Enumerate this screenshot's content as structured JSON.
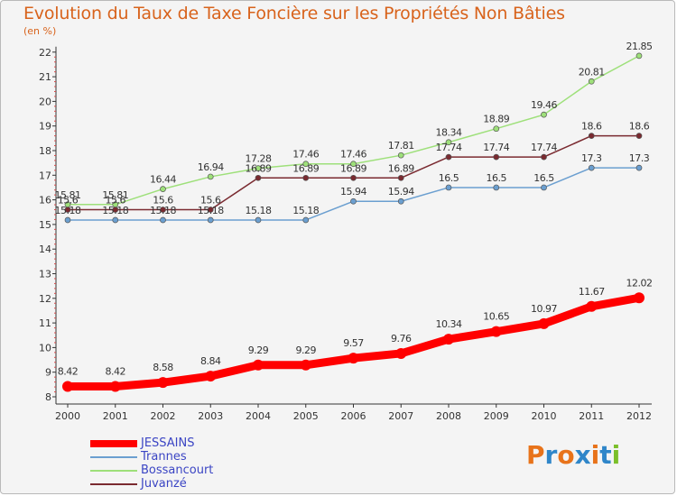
{
  "title": "Evolution du Taux de Taxe Foncière sur les Propriétés Non Bâties",
  "ylabel": "(en %)",
  "logo": {
    "text": "Proxiti",
    "colors": [
      "#e8731a",
      "#2f86c9",
      "#e8731a",
      "#2f86c9",
      "#e8731a",
      "#2f86c9",
      "#7bbf2a"
    ]
  },
  "chart_data": {
    "type": "line",
    "x": [
      "2000",
      "2001",
      "2002",
      "2003",
      "2004",
      "2005",
      "2006",
      "2007",
      "2008",
      "2009",
      "2010",
      "2011",
      "2012"
    ],
    "ylim": [
      8,
      22
    ],
    "yticks": [
      "8",
      "9",
      "10",
      "11",
      "12",
      "13",
      "14",
      "15",
      "16",
      "17",
      "18",
      "19",
      "20",
      "21",
      "22"
    ],
    "grid": false,
    "legend": "bottom-left",
    "series": [
      {
        "name": "JESSAINS",
        "color": "#ff0000",
        "values": [
          8.42,
          8.42,
          8.58,
          8.84,
          9.29,
          9.29,
          9.57,
          9.76,
          10.34,
          10.65,
          10.97,
          11.67,
          12.02
        ],
        "labels": [
          "8.42",
          "8.42",
          "8.58",
          "8.84",
          "9.29",
          "9.29",
          "9.57",
          "9.76",
          "10.34",
          "10.65",
          "10.97",
          "11.67",
          "12.02"
        ]
      },
      {
        "name": "Trannes",
        "color": "#6b9fd0",
        "values": [
          15.18,
          15.18,
          15.18,
          15.18,
          15.18,
          15.18,
          15.94,
          15.94,
          16.5,
          16.5,
          16.5,
          17.3,
          17.3
        ],
        "labels": [
          "15.18",
          "15.18",
          "15.18",
          "15.18",
          "15.18",
          "15.18",
          "15.94",
          "15.94",
          "16.5",
          "16.5",
          "16.5",
          "17.3",
          "17.3"
        ]
      },
      {
        "name": "Bossancourt",
        "color": "#9ee07a",
        "values": [
          15.81,
          15.81,
          16.44,
          16.94,
          17.28,
          17.46,
          17.46,
          17.81,
          18.34,
          18.89,
          19.46,
          20.81,
          21.85
        ],
        "labels": [
          "15.81",
          "15.81",
          "16.44",
          "16.94",
          "17.28",
          "17.46",
          "17.46",
          "17.81",
          "18.34",
          "18.89",
          "19.46",
          "20.81",
          "21.85"
        ]
      },
      {
        "name": "Juvanzé",
        "color": "#7a2a30",
        "values": [
          15.6,
          15.6,
          15.6,
          15.6,
          16.89,
          16.89,
          16.89,
          16.89,
          17.74,
          17.74,
          17.74,
          18.6,
          18.6
        ],
        "labels": [
          "15.6",
          "15.6",
          "15.6",
          "15.6",
          "16.89",
          "16.89",
          "16.89",
          "16.89",
          "17.74",
          "17.74",
          "17.74",
          "18.6",
          "18.6"
        ]
      }
    ]
  }
}
